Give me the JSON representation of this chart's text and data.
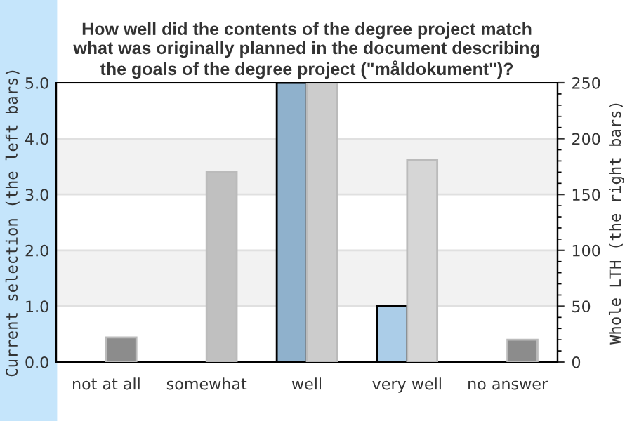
{
  "chart_data": {
    "type": "bar",
    "title": "How well did the contents of the degree project match\nwhat was originally planned in the document describing\nthe goals of the degree project (\"måldokument\")?",
    "categories": [
      "not at all",
      "somewhat",
      "well",
      "very well",
      "no answer"
    ],
    "ylabel": "Current selection (the left bars)",
    "y2label": "Whole LTH (the right bars)",
    "series": [
      {
        "axis": "y",
        "colors": [
          "#8fb1cc",
          "#8fb1cc",
          "#8fb1cc",
          "#abcde8",
          "#8fb1cc"
        ],
        "values": [
          0,
          0,
          5,
          1,
          0
        ]
      },
      {
        "axis": "y2",
        "colors": [
          "#8c8c8c",
          "#c0c0c0",
          "#cccccc",
          "#d6d6d6",
          "#8c8c8c"
        ],
        "values": [
          22,
          170,
          250,
          181,
          20
        ]
      }
    ],
    "ylim": [
      0,
      5
    ],
    "yticks": [
      {
        "value": 0,
        "label": "0.0"
      },
      {
        "value": 1,
        "label": "1.0"
      },
      {
        "value": 2,
        "label": "2.0"
      },
      {
        "value": 3,
        "label": "3.0"
      },
      {
        "value": 4,
        "label": "4.0"
      },
      {
        "value": 5,
        "label": "5.0"
      }
    ],
    "y2lim": [
      0,
      250
    ],
    "y2ticks": [
      0,
      50,
      100,
      150,
      200,
      250
    ],
    "bands": [
      {
        "axis": "y",
        "from": 1,
        "to": 2,
        "color": "#f2f2f2"
      },
      {
        "axis": "y",
        "from": 3,
        "to": 4,
        "color": "#f2f2f2"
      }
    ],
    "grid": "y"
  }
}
